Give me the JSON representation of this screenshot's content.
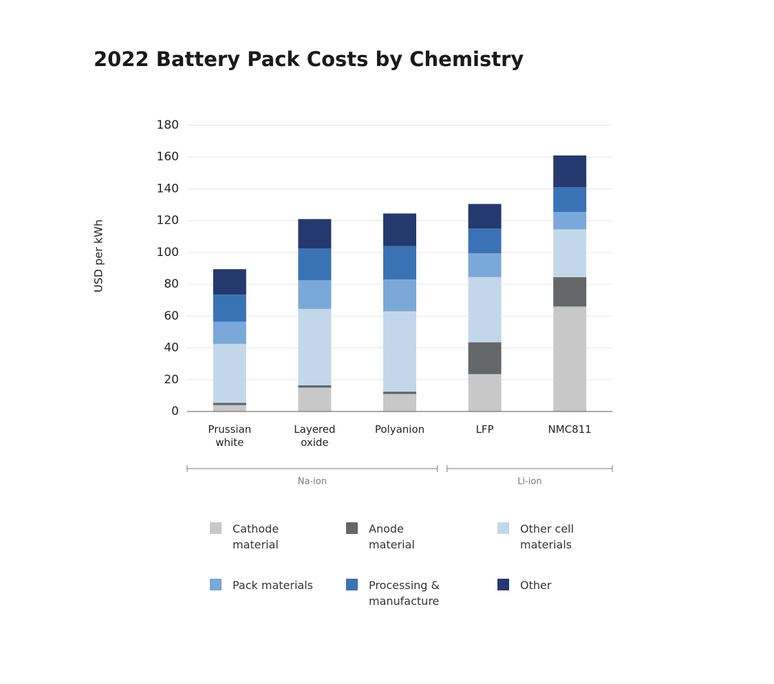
{
  "chart_data": {
    "type": "stacked-bar",
    "title": "2022 Battery Pack Costs by Chemistry",
    "y_label": "USD per kWh",
    "categories": [
      "Prussian white",
      "Layered oxide",
      "Polyanion",
      "LFP",
      "NMC811"
    ],
    "groups": [
      {
        "name": "Na-ion",
        "count": 3
      },
      {
        "name": "Li-ion",
        "count": 2
      }
    ],
    "series": [
      {
        "name": "Cathode material",
        "color": "#c8c8c8",
        "values": [
          4,
          15,
          11,
          23.5,
          66
        ]
      },
      {
        "name": "Anode material",
        "color": "#63676a",
        "values": [
          1.5,
          1.5,
          1.5,
          20,
          18.5
        ]
      },
      {
        "name": "Other cell materials",
        "color": "#c2d8ea",
        "values": [
          37,
          48,
          50.5,
          41,
          30
        ]
      },
      {
        "name": "Pack materials",
        "color": "#7aa8d8",
        "values": [
          14,
          18,
          20,
          15,
          11
        ]
      },
      {
        "name": "Processing & manufacture",
        "color": "#3a72b6",
        "values": [
          17,
          20,
          21,
          15.5,
          15.5
        ]
      },
      {
        "name": "Other",
        "color": "#243a6e",
        "values": [
          16,
          18.5,
          20.5,
          15.5,
          20
        ]
      }
    ],
    "ylim": [
      0,
      180
    ],
    "yticks": [
      0,
      20,
      40,
      60,
      80,
      100,
      120,
      140,
      160,
      180
    ],
    "grid": true
  }
}
